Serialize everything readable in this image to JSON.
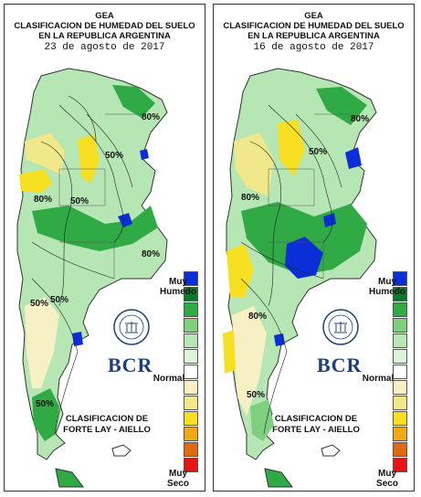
{
  "panels": [
    {
      "header_line1": "GEA",
      "header_line2": "CLASIFICACION DE HUMEDAD DEL SUELO",
      "header_line3": "EN LA REPUBLICA ARGENTINA",
      "date": "23 de agosto de 2017",
      "contour_labels": [
        "50%",
        "80%",
        "50%",
        "80%",
        "50%",
        "50%",
        "80%",
        "50%"
      ]
    },
    {
      "header_line1": "GEA",
      "header_line2": "CLASIFICACION DE HUMEDAD DEL SUELO",
      "header_line3": "EN LA REPUBLICA ARGENTINA",
      "date": "16 de agosto de 2017",
      "contour_labels": [
        "50%",
        "80%",
        "80%",
        "80%",
        "50%"
      ]
    }
  ],
  "legend": {
    "top_label_1": "Muy",
    "top_label_2": "Humedo",
    "mid_label": "Normal",
    "bottom_label_1": "Muy",
    "bottom_label_2": "Seco",
    "colors": [
      "#0a2fd8",
      "#0a7a2a",
      "#2faa45",
      "#7ed07e",
      "#b5e6b3",
      "#dcf4d8",
      "#ffffff",
      "#f6f0c4",
      "#f0e88a",
      "#f6e021",
      "#f0a818",
      "#e06a10",
      "#e81414"
    ]
  },
  "classification_line1": "CLASIFICACION DE",
  "classification_line2": "FORTE LAY - AIELLO",
  "logo": {
    "text": "BCR",
    "seal_text": "BOLSA DE COMERCIO DE ROSARIO"
  }
}
